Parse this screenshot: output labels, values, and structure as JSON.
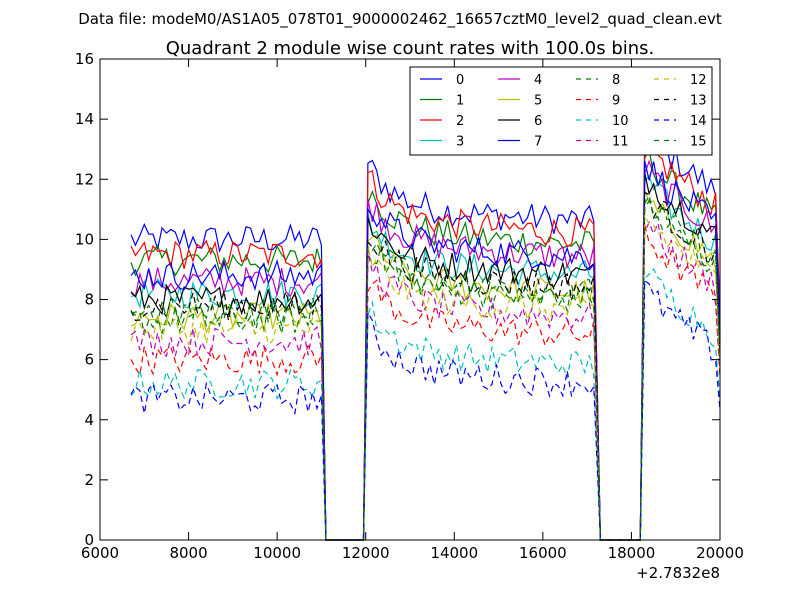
{
  "suptitle": "Data file: modeM0/AS1A05_078T01_9000002462_16657cztM0_level2_quad_clean.evt",
  "chart_data": {
    "type": "line",
    "title": "Quadrant 2 module wise count rates with 100.0s bins.",
    "xlabel": "",
    "ylabel": "",
    "x_offset_label": "+2.7832e8",
    "xlim": [
      6000,
      20000
    ],
    "ylim": [
      0,
      16
    ],
    "xticks": [
      6000,
      8000,
      10000,
      12000,
      14000,
      16000,
      18000,
      20000
    ],
    "yticks": [
      0,
      2,
      4,
      6,
      8,
      10,
      12,
      14,
      16
    ],
    "grid": false,
    "legend_placement": "top-right",
    "legend_columns": 4,
    "segments": [
      {
        "start": 6700,
        "end": 11000
      },
      {
        "start": 12050,
        "end": 17200
      },
      {
        "start": 18300,
        "end": 19900
      }
    ],
    "gaps": [
      {
        "start": 11100,
        "end": 11950,
        "value": 0
      },
      {
        "start": 17300,
        "end": 18200,
        "value": 0
      }
    ],
    "series": [
      {
        "name": "0",
        "color": "#0000ff",
        "dash": "solid",
        "plateau": [
          10.0,
          11.0,
          12.5
        ]
      },
      {
        "name": "1",
        "color": "#008000",
        "dash": "solid",
        "plateau": [
          9.3,
          10.2,
          11.6
        ]
      },
      {
        "name": "2",
        "color": "#ff0000",
        "dash": "solid",
        "plateau": [
          9.5,
          10.6,
          12.0
        ]
      },
      {
        "name": "3",
        "color": "#00bfbf",
        "dash": "solid",
        "plateau": [
          8.2,
          9.2,
          10.8
        ]
      },
      {
        "name": "4",
        "color": "#bf00bf",
        "dash": "solid",
        "plateau": [
          8.6,
          9.8,
          11.2
        ]
      },
      {
        "name": "5",
        "color": "#bfbf00",
        "dash": "solid",
        "plateau": [
          7.4,
          8.6,
          10.2
        ]
      },
      {
        "name": "6",
        "color": "#000000",
        "dash": "solid",
        "plateau": [
          8.0,
          9.2,
          11.0
        ]
      },
      {
        "name": "7",
        "color": "#0000ff",
        "dash": "solid",
        "plateau": [
          8.8,
          9.8,
          11.4
        ]
      },
      {
        "name": "8",
        "color": "#008000",
        "dash": "dashed",
        "plateau": [
          7.3,
          8.4,
          10.0
        ]
      },
      {
        "name": "9",
        "color": "#ff0000",
        "dash": "dashed",
        "plateau": [
          6.0,
          7.2,
          9.0
        ]
      },
      {
        "name": "10",
        "color": "#00bfbf",
        "dash": "dashed",
        "plateau": [
          5.2,
          6.2,
          7.8
        ]
      },
      {
        "name": "11",
        "color": "#bf00bf",
        "dash": "dashed",
        "plateau": [
          6.6,
          7.8,
          9.4
        ]
      },
      {
        "name": "12",
        "color": "#bfbf00",
        "dash": "dashed",
        "plateau": [
          7.0,
          8.0,
          9.6
        ]
      },
      {
        "name": "13",
        "color": "#000000",
        "dash": "dashed",
        "plateau": [
          7.8,
          8.8,
          10.4
        ]
      },
      {
        "name": "14",
        "color": "#0000ff",
        "dash": "dashed",
        "plateau": [
          4.7,
          5.6,
          7.2
        ]
      },
      {
        "name": "15",
        "color": "#008000",
        "dash": "dashed",
        "plateau": [
          7.6,
          8.6,
          10.2
        ]
      }
    ]
  }
}
